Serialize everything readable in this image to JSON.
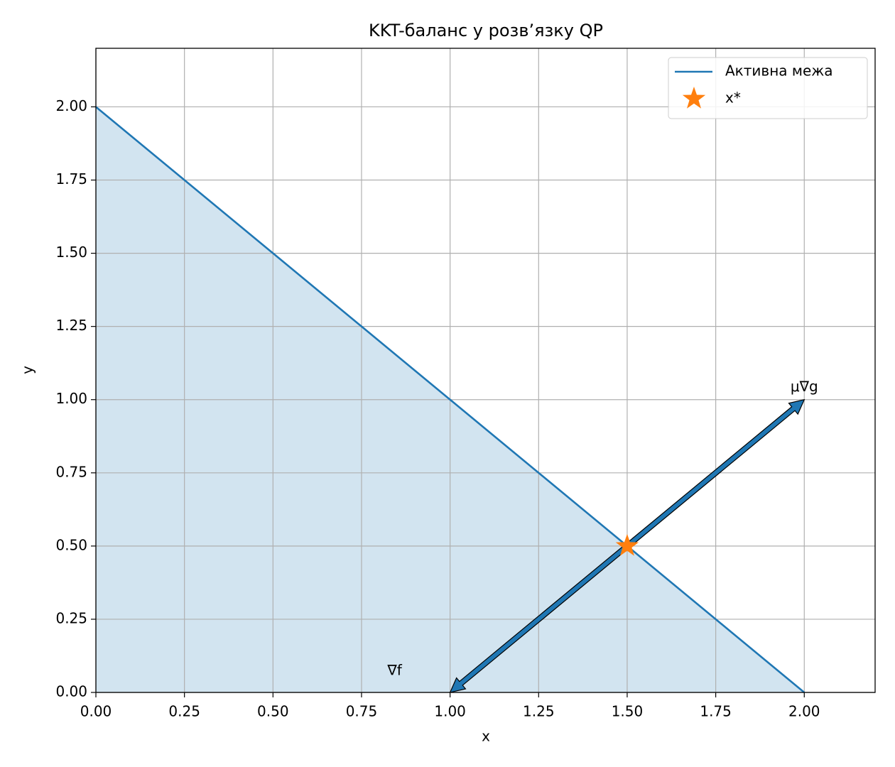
{
  "chart_data": {
    "type": "line",
    "title": "KKT-баланс у розв’язку QP",
    "x_label": "x",
    "y_label": "y",
    "x": [
      0,
      2
    ],
    "series": [
      {
        "name": "Активна межа",
        "color": "#1f77b4",
        "values": [
          2,
          0
        ],
        "fill": true
      }
    ],
    "points": [
      {
        "name": "x*",
        "color": "#ff7f0e",
        "x": 1.5,
        "y": 0.5,
        "marker": "star"
      }
    ],
    "arrows": [
      {
        "label": "∇f",
        "from": [
          1.5,
          0.5
        ],
        "to": [
          1,
          0
        ]
      },
      {
        "label": "μ∇g",
        "from": [
          1.5,
          0.5
        ],
        "to": [
          2,
          1
        ]
      }
    ],
    "xlim": [
      0,
      2.2
    ],
    "ylim": [
      0,
      2.2
    ],
    "xticks": [
      {
        "value": 0,
        "label": "0.00"
      },
      {
        "value": 0.25,
        "label": "0.25"
      },
      {
        "value": 0.5,
        "label": "0.50"
      },
      {
        "value": 0.75,
        "label": "0.75"
      },
      {
        "value": 1,
        "label": "1.00"
      },
      {
        "value": 1.25,
        "label": "1.25"
      },
      {
        "value": 1.5,
        "label": "1.50"
      },
      {
        "value": 1.75,
        "label": "1.75"
      },
      {
        "value": 2,
        "label": "2.00"
      }
    ],
    "yticks": [
      {
        "value": 0,
        "label": "0.00"
      },
      {
        "value": 0.25,
        "label": "0.25"
      },
      {
        "value": 0.5,
        "label": "0.50"
      },
      {
        "value": 0.75,
        "label": "0.75"
      },
      {
        "value": 1,
        "label": "1.00"
      },
      {
        "value": 1.25,
        "label": "1.25"
      },
      {
        "value": 1.5,
        "label": "1.50"
      },
      {
        "value": 1.75,
        "label": "1.75"
      },
      {
        "value": 2,
        "label": "2.00"
      }
    ],
    "grid": true,
    "legend": "upper right"
  }
}
